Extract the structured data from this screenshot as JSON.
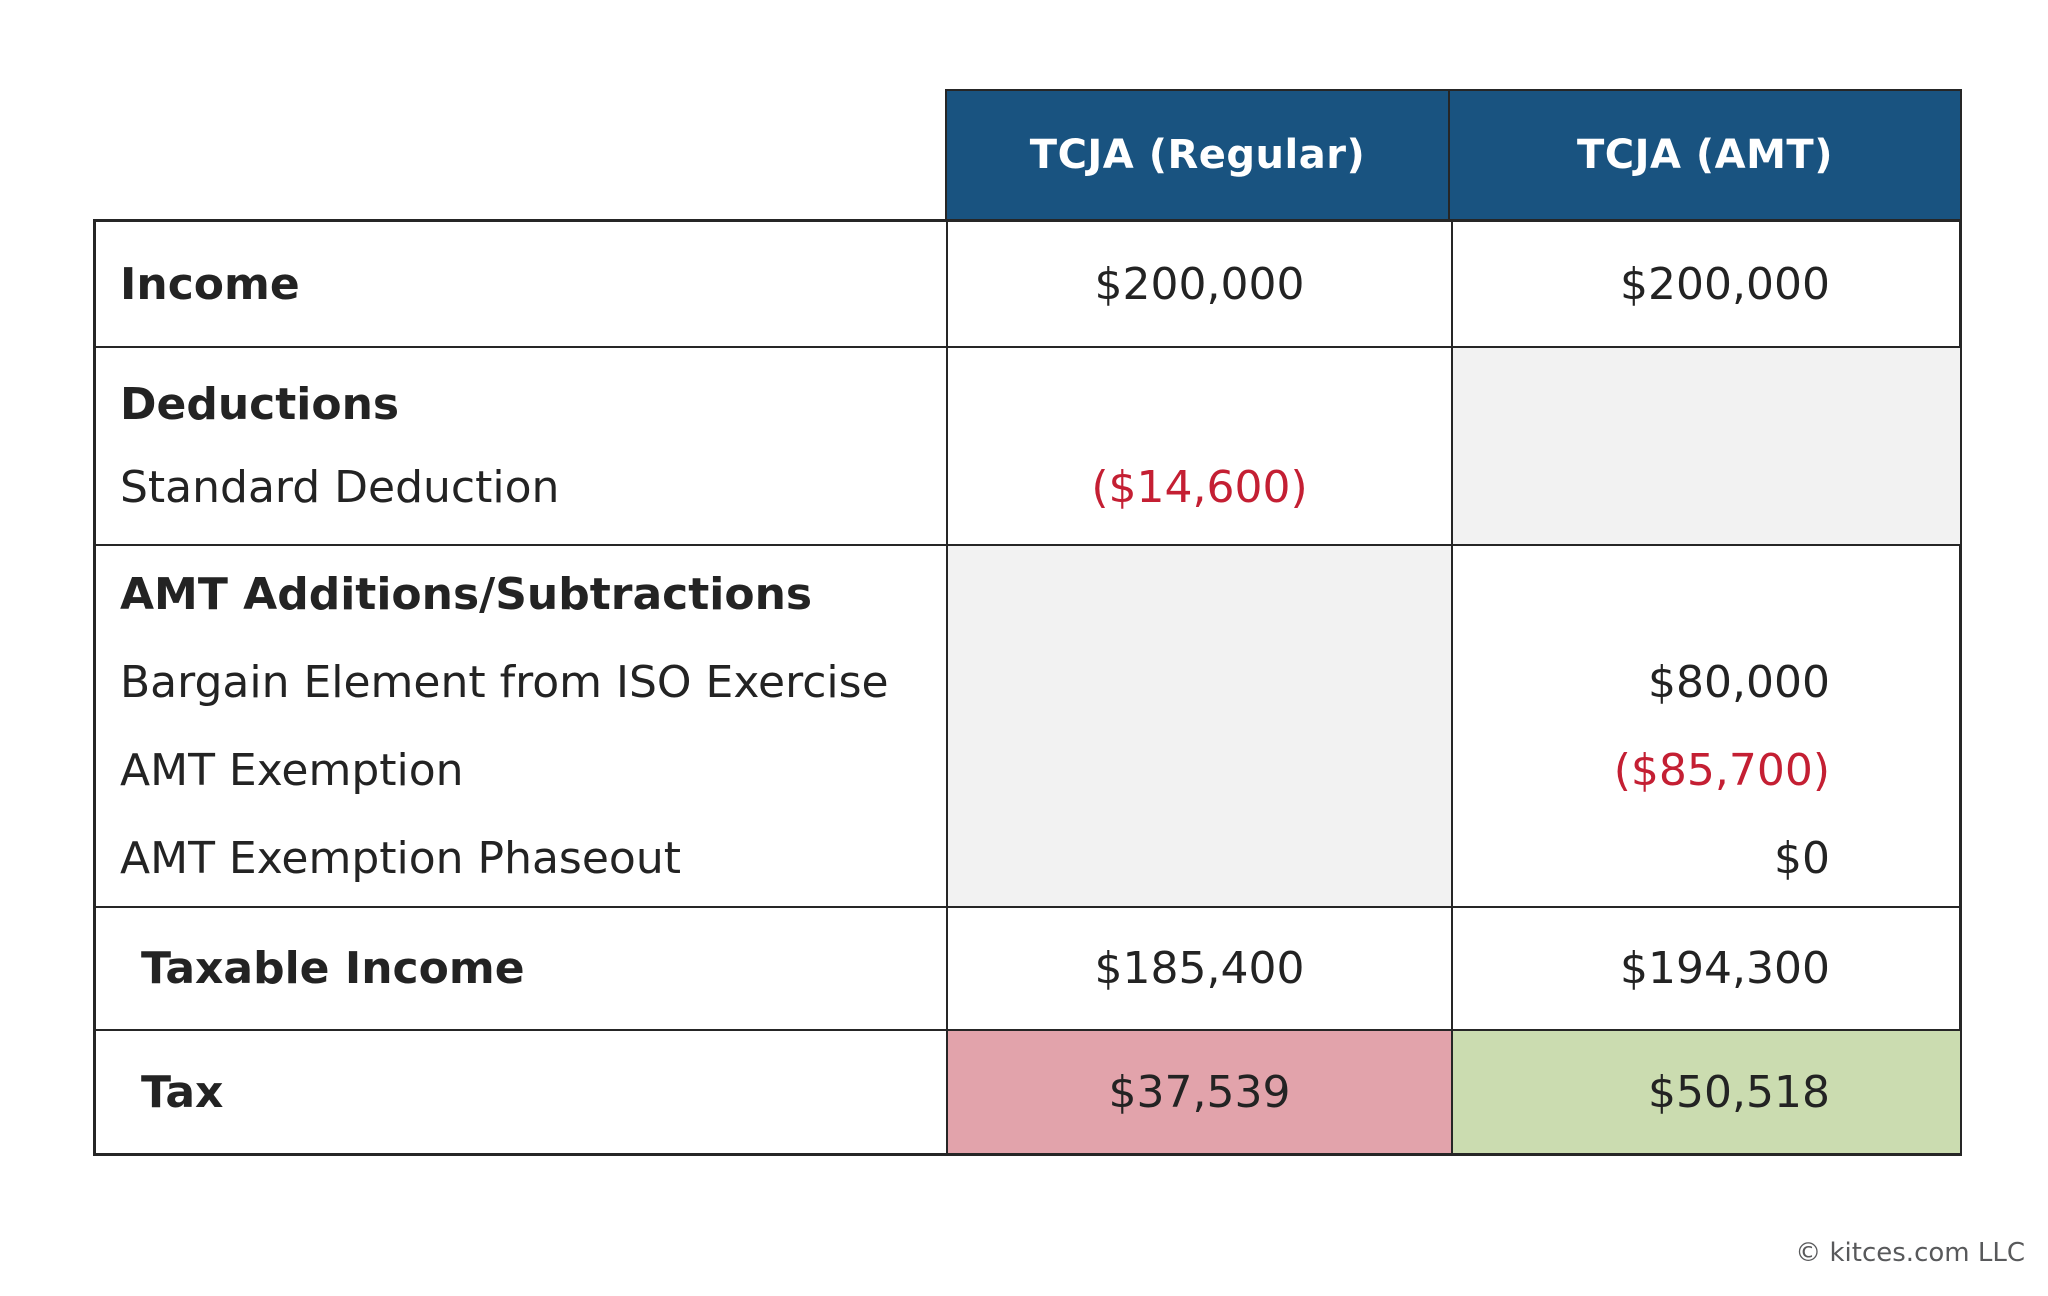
{
  "header": {
    "col_regular": "TCJA (Regular)",
    "col_amt": "TCJA (AMT)"
  },
  "rows": {
    "income": {
      "label": "Income",
      "regular": "$200,000",
      "amt": "$200,000"
    },
    "deductions": {
      "label": "Deductions",
      "items": [
        {
          "label": "Standard Deduction",
          "regular": "($14,600)",
          "amt": ""
        }
      ]
    },
    "amt_adjustments": {
      "label": "AMT Additions/Subtractions",
      "items": [
        {
          "label": "Bargain Element from ISO Exercise",
          "regular": "",
          "amt": "$80,000"
        },
        {
          "label": "AMT Exemption",
          "regular": "",
          "amt": "($85,700)"
        },
        {
          "label": "AMT Exemption Phaseout",
          "regular": "",
          "amt": "$0"
        }
      ]
    },
    "taxable_income": {
      "label": "Taxable Income",
      "regular": "$185,400",
      "amt": "$194,300"
    },
    "tax": {
      "label": "Tax",
      "regular": "$37,539",
      "amt": "$50,518"
    }
  },
  "footer": {
    "copyright": "© kitces.com LLC"
  },
  "colors": {
    "header_blue": "#195380",
    "negative_red": "#c41f33",
    "tax_regular_bg": "#e2a3ab",
    "tax_amt_bg": "#cbdcb0",
    "muted_cell_bg": "#f2f2f2",
    "border": "#262626"
  },
  "chart_data": {
    "type": "table",
    "title": "TCJA Regular vs AMT tax calculation comparison",
    "columns": [
      "",
      "TCJA (Regular)",
      "TCJA (AMT)"
    ],
    "rows": [
      [
        "Income",
        "$200,000",
        "$200,000"
      ],
      [
        "Deductions",
        "",
        ""
      ],
      [
        "Standard Deduction",
        "($14,600)",
        ""
      ],
      [
        "AMT Additions/Subtractions",
        "",
        ""
      ],
      [
        "Bargain Element from ISO Exercise",
        "",
        "$80,000"
      ],
      [
        "AMT Exemption",
        "",
        "($85,700)"
      ],
      [
        "AMT Exemption Phaseout",
        "",
        "$0"
      ],
      [
        "Taxable Income",
        "$185,400",
        "$194,300"
      ],
      [
        "Tax",
        "$37,539",
        "$50,518"
      ]
    ],
    "notes": "Negative values shown in red parentheses; Tax row highlighted pink (Regular) and green (AMT); gray cells = not applicable"
  }
}
